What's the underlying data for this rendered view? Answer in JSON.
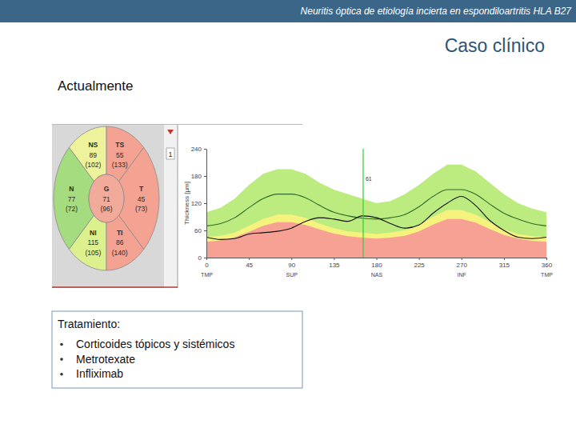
{
  "header": "Neuritis óptica de etiología incierta en espondiloartritis HLA B27",
  "title": "Caso clínico",
  "section": "Actualmente",
  "treatment": {
    "title": "Tratamiento:",
    "items": [
      "Corticoides tópicos y sistémicos",
      "Metrotexate",
      "Infliximab"
    ]
  },
  "chart_data": [
    {
      "type": "sector",
      "categories": [
        "NS",
        "TS",
        "N",
        "G",
        "T",
        "NI",
        "TI"
      ],
      "values": [
        89,
        55,
        77,
        71,
        45,
        115,
        86
      ],
      "reference_values": [
        102,
        133,
        72,
        96,
        73,
        105,
        140
      ],
      "reference_labels": [
        "(102)",
        "(133)",
        "(72)",
        "(96)",
        "(73)",
        "(105)",
        "(140)"
      ],
      "colors": [
        "#eef29a",
        "#f4a292",
        "#a6dc80",
        "#f2aa9a",
        "#f4a292",
        "#dcf08e",
        "#f4a292"
      ],
      "annotations": [
        "1"
      ]
    },
    {
      "type": "line",
      "x": [
        0,
        15,
        30,
        45,
        60,
        75,
        90,
        105,
        120,
        135,
        150,
        165,
        180,
        195,
        210,
        225,
        240,
        255,
        270,
        285,
        300,
        315,
        330,
        345,
        360
      ],
      "xlim": [
        0,
        360
      ],
      "xticks": [
        0,
        45,
        90,
        135,
        180,
        225,
        270,
        315,
        360
      ],
      "region_ticks": [
        {
          "value": 0,
          "label": "TMP"
        },
        {
          "value": 90,
          "label": "SUP"
        },
        {
          "value": 180,
          "label": "NAS"
        },
        {
          "value": 270,
          "label": "INF"
        },
        {
          "value": 360,
          "label": "TMP"
        }
      ],
      "ylim": [
        0,
        240
      ],
      "yticks": [
        0,
        60,
        120,
        180,
        240
      ],
      "ylabel": "Thickness [µm]",
      "series": [
        {
          "type": "area",
          "color": "#bcec80",
          "values": [
            100,
            110,
            130,
            160,
            185,
            195,
            195,
            185,
            165,
            150,
            140,
            130,
            120,
            125,
            140,
            160,
            185,
            205,
            205,
            190,
            165,
            140,
            120,
            108,
            100
          ]
        },
        {
          "type": "area",
          "color": "#f6f27e",
          "values": [
            45,
            48,
            55,
            70,
            85,
            95,
            95,
            88,
            75,
            65,
            58,
            55,
            52,
            55,
            60,
            72,
            90,
            105,
            105,
            95,
            78,
            62,
            52,
            47,
            45
          ]
        },
        {
          "type": "area",
          "color": "#f7a194",
          "values": [
            35,
            38,
            45,
            57,
            70,
            78,
            78,
            72,
            62,
            53,
            47,
            44,
            42,
            44,
            48,
            58,
            73,
            85,
            85,
            77,
            63,
            50,
            42,
            37,
            35
          ]
        },
        {
          "type": "line",
          "color": "#2f6a2a",
          "values": [
            70,
            75,
            88,
            110,
            130,
            140,
            140,
            132,
            115,
            100,
            92,
            87,
            85,
            88,
            95,
            112,
            135,
            150,
            150,
            140,
            118,
            98,
            85,
            75,
            70
          ]
        },
        {
          "type": "line",
          "color": "#111111",
          "values": [
            45,
            40,
            42,
            52,
            55,
            58,
            65,
            80,
            88,
            85,
            80,
            92,
            88,
            75,
            65,
            72,
            98,
            120,
            135,
            115,
            82,
            60,
            45,
            42,
            45
          ]
        }
      ],
      "annotations": [
        {
          "x": 166,
          "text": "61",
          "color": "#33cc33"
        }
      ]
    }
  ]
}
